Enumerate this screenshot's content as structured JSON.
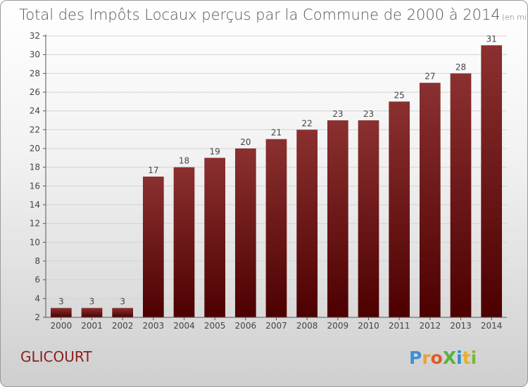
{
  "chart_data": {
    "type": "bar",
    "title": "Total des Impôts Locaux perçus par la Commune de 2000 à 2014",
    "unit_note": "(en milliers d'€)",
    "categories": [
      "2000",
      "2001",
      "2002",
      "2003",
      "2004",
      "2005",
      "2006",
      "2007",
      "2008",
      "2009",
      "2010",
      "2011",
      "2012",
      "2013",
      "2014"
    ],
    "values": [
      3,
      3,
      3,
      17,
      18,
      19,
      20,
      21,
      22,
      23,
      23,
      25,
      27,
      28,
      31
    ],
    "ylim": [
      2,
      32
    ],
    "yticks": [
      2,
      4,
      6,
      8,
      10,
      12,
      14,
      16,
      18,
      20,
      22,
      24,
      26,
      28,
      30,
      32
    ],
    "grid": true,
    "xlabel": "",
    "ylabel": "",
    "bar_color_top": "#8b3030",
    "bar_color_bottom": "#4d0000"
  },
  "commune": "GLICOURT",
  "logo": {
    "text": "ProXiti"
  }
}
